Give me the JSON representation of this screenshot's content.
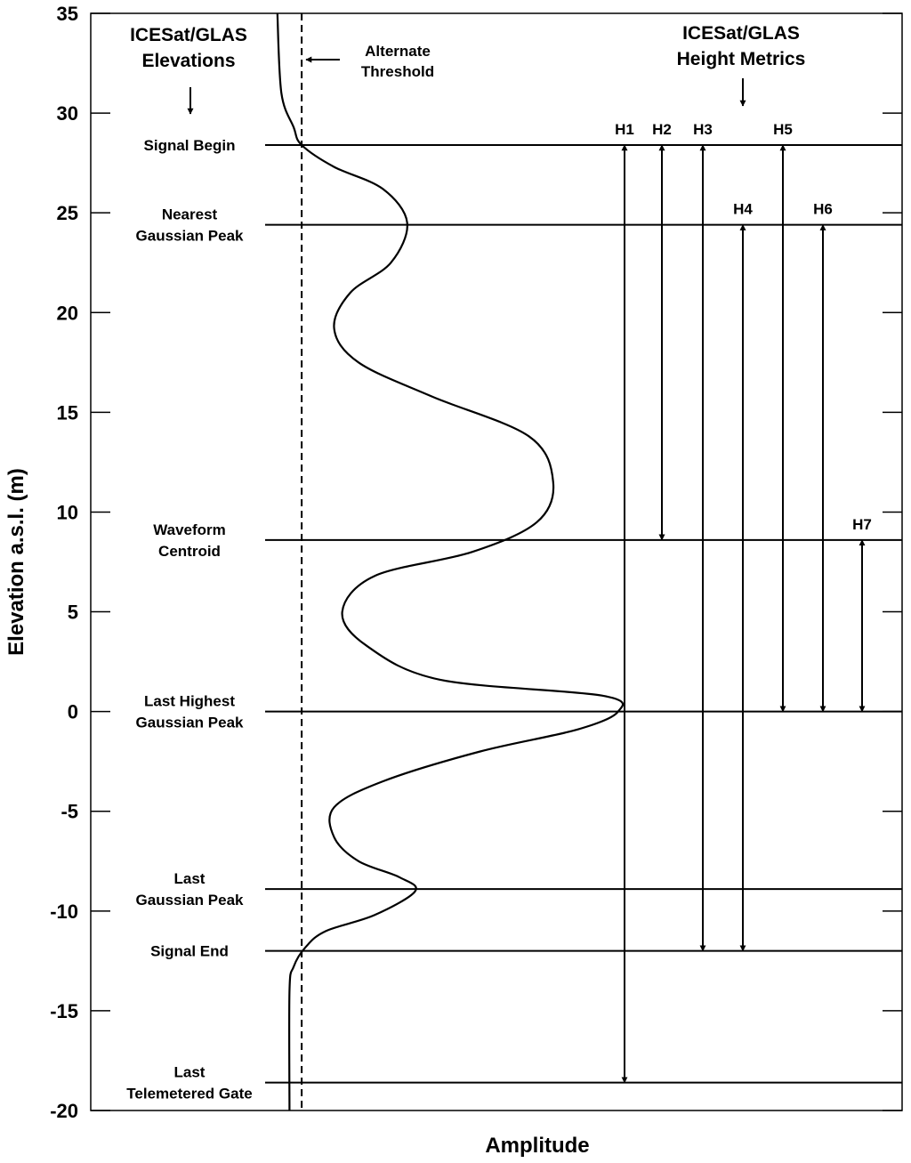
{
  "chart_data": {
    "type": "line",
    "title": "",
    "xlabel": "Amplitude",
    "ylabel": "Elevation a.s.l. (m)",
    "ylim": [
      -20,
      35
    ],
    "yticks": [
      35,
      30,
      25,
      20,
      15,
      10,
      5,
      0,
      -5,
      -10,
      -15,
      -20
    ],
    "xlim": [
      0,
      1
    ],
    "grid": false,
    "headers": {
      "left": [
        "ICESat/GLAS",
        "Elevations"
      ],
      "right": [
        "ICESat/GLAS",
        "Height Metrics"
      ],
      "threshold": [
        "Alternate",
        "Threshold"
      ]
    },
    "threshold_x": 0.26,
    "waveform": [
      [
        0.23,
        35
      ],
      [
        0.235,
        31
      ],
      [
        0.25,
        29.3
      ],
      [
        0.26,
        28.4
      ],
      [
        0.3,
        27.3
      ],
      [
        0.36,
        26.2
      ],
      [
        0.39,
        24.5
      ],
      [
        0.37,
        22.5
      ],
      [
        0.32,
        21
      ],
      [
        0.3,
        19.2
      ],
      [
        0.33,
        17.5
      ],
      [
        0.42,
        15.8
      ],
      [
        0.54,
        13.8
      ],
      [
        0.57,
        11.5
      ],
      [
        0.55,
        9.5
      ],
      [
        0.47,
        8
      ],
      [
        0.35,
        6.8
      ],
      [
        0.31,
        5
      ],
      [
        0.34,
        3.3
      ],
      [
        0.43,
        1.6
      ],
      [
        0.63,
        0.8
      ],
      [
        0.65,
        0.0
      ],
      [
        0.6,
        -0.9
      ],
      [
        0.48,
        -2
      ],
      [
        0.36,
        -3.5
      ],
      [
        0.3,
        -4.8
      ],
      [
        0.3,
        -6.3
      ],
      [
        0.33,
        -7.5
      ],
      [
        0.38,
        -8.3
      ],
      [
        0.4,
        -9
      ],
      [
        0.35,
        -10.2
      ],
      [
        0.29,
        -11
      ],
      [
        0.265,
        -11.8
      ],
      [
        0.25,
        -12.8
      ],
      [
        0.245,
        -14
      ],
      [
        0.245,
        -20
      ]
    ],
    "horizontal_lines": [
      {
        "label": [
          "Signal Begin"
        ],
        "y": 28.4
      },
      {
        "label": [
          "Nearest",
          "Gaussian Peak"
        ],
        "y": 24.4
      },
      {
        "label": [
          "Waveform",
          "Centroid"
        ],
        "y": 8.6
      },
      {
        "label": [
          "Last Highest",
          "Gaussian Peak"
        ],
        "y": 0
      },
      {
        "label": [
          "Last",
          "Gaussian Peak"
        ],
        "y": -8.9
      },
      {
        "label": [
          "Signal End"
        ],
        "y": -12
      },
      {
        "label": [
          "Last",
          "Telemetered Gate"
        ],
        "y": -18.6
      }
    ],
    "height_metrics": [
      {
        "name": "H1",
        "top": 28.4,
        "bottom": -18.6
      },
      {
        "name": "H2",
        "top": 28.4,
        "bottom": 8.6
      },
      {
        "name": "H3",
        "top": 28.4,
        "bottom": -12
      },
      {
        "name": "H4",
        "top": 24.4,
        "bottom": -12
      },
      {
        "name": "H5",
        "top": 28.4,
        "bottom": 0
      },
      {
        "name": "H6",
        "top": 24.4,
        "bottom": 0
      },
      {
        "name": "H7",
        "top": 8.6,
        "bottom": 0
      }
    ]
  }
}
